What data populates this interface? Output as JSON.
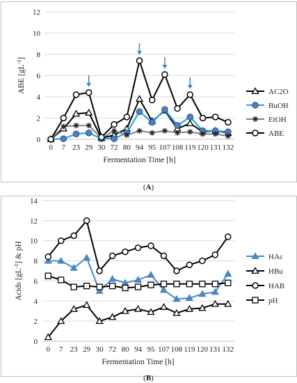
{
  "figure": {
    "caption_a": "A",
    "caption_b": "B"
  },
  "chart_data": [
    {
      "panel": "A",
      "type": "line",
      "categories": [
        "0",
        "7",
        "23",
        "29",
        "30",
        "72",
        "80",
        "94",
        "95",
        "107",
        "108",
        "119",
        "120",
        "131",
        "132"
      ],
      "xlabel": "Fermentation Time [h]",
      "ylabel_main": "ABE [gL",
      "ylabel_sup": "-1",
      "ylabel_end": "]",
      "ylim": [
        0,
        12
      ],
      "yticks": [
        0,
        2,
        4,
        6,
        8,
        10,
        12
      ],
      "grid": true,
      "legend_placement": "right",
      "arrow_categories": [
        "29",
        "94",
        "107",
        "119"
      ],
      "arrow_color": "#4a86c5",
      "series": [
        {
          "name": "AC2O",
          "marker": "triangle",
          "color": "#000000",
          "width": 2,
          "values": [
            0,
            1.0,
            2.4,
            2.5,
            0.1,
            0.4,
            1.0,
            3.8,
            1.7,
            2.7,
            1.0,
            1.5,
            0.7,
            0.8,
            0.6
          ]
        },
        {
          "name": "BuOH",
          "marker": "circle-filled",
          "color": "#29a8e0",
          "fill": "#4f7fc0",
          "width": 2.2,
          "values": [
            0,
            0.05,
            0.5,
            0.6,
            0.05,
            0.05,
            0.6,
            2.6,
            1.6,
            2.8,
            1.3,
            2.1,
            0.8,
            0.8,
            0.7
          ]
        },
        {
          "name": "EtOH",
          "marker": "star",
          "color": "#808080",
          "width": 2,
          "values": [
            0,
            1.2,
            1.3,
            1.3,
            0.1,
            0.8,
            0.4,
            0.8,
            0.6,
            0.8,
            0.6,
            0.7,
            0.5,
            0.5,
            0.3
          ]
        },
        {
          "name": "ABE",
          "marker": "circle-open",
          "color": "#000000",
          "width": 2,
          "values": [
            0,
            2.0,
            4.2,
            4.4,
            0.2,
            1.4,
            2.1,
            7.4,
            3.7,
            6.1,
            2.9,
            4.2,
            2.0,
            2.1,
            1.6
          ]
        }
      ]
    },
    {
      "panel": "B",
      "type": "line",
      "categories": [
        "0",
        "7",
        "23",
        "29",
        "30",
        "72",
        "80",
        "94",
        "95",
        "107",
        "108",
        "119",
        "120",
        "131",
        "132"
      ],
      "xlabel": "Fermentation Time [h]",
      "ylabel_main": "Acids [gL",
      "ylabel_sup": "-1",
      "ylabel_end": "] & pH",
      "ylim": [
        0,
        14
      ],
      "yticks": [
        0,
        2,
        4,
        6,
        8,
        10,
        12,
        14
      ],
      "grid": true,
      "legend_placement": "right",
      "series": [
        {
          "name": "HAc",
          "marker": "triangle-filled",
          "color": "#4a86c5",
          "fill": "#4a86c5",
          "width": 2,
          "values": [
            8.0,
            8.0,
            7.3,
            8.3,
            5.0,
            6.2,
            5.8,
            6.1,
            6.6,
            5.1,
            4.2,
            4.3,
            4.7,
            4.9,
            6.7
          ]
        },
        {
          "name": "HBu",
          "marker": "triangle",
          "color": "#000000",
          "width": 2,
          "values": [
            0.4,
            2.0,
            3.2,
            3.6,
            2.0,
            2.4,
            3.0,
            3.2,
            2.9,
            3.4,
            2.8,
            3.2,
            3.3,
            3.7,
            3.7
          ]
        },
        {
          "name": "HAB",
          "marker": "circle-open",
          "color": "#000000",
          "width": 2,
          "values": [
            8.4,
            10.0,
            10.5,
            12.0,
            7.0,
            8.5,
            8.9,
            9.3,
            9.5,
            8.5,
            7.0,
            7.6,
            8.0,
            8.6,
            10.4
          ]
        },
        {
          "name": "pH",
          "marker": "square-open",
          "color": "#000000",
          "width": 2,
          "values": [
            6.5,
            6.1,
            5.4,
            5.5,
            5.4,
            5.5,
            5.3,
            5.4,
            5.6,
            5.7,
            5.7,
            5.7,
            5.7,
            5.7,
            5.8
          ]
        }
      ]
    }
  ]
}
